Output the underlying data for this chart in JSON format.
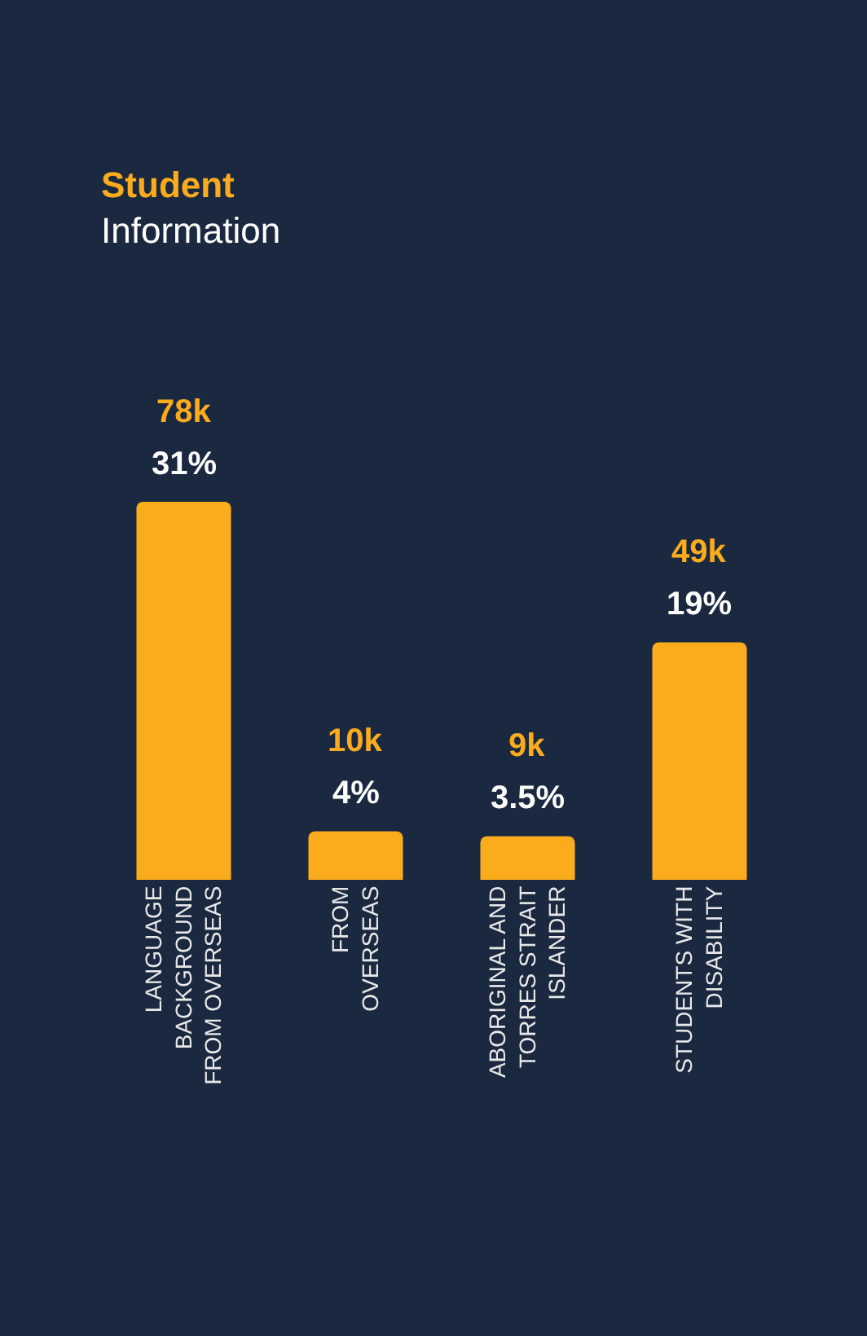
{
  "chart_data": {
    "type": "bar",
    "title": "Student",
    "subtitle": "Information",
    "categories": [
      "LANGUAGE\nBACKGROUND\nFROM OVERSEAS",
      "FROM\nOVERSEAS",
      "ABORIGINAL AND\nTORRES STRAIT\nISLANDER",
      "STUDENTS WITH\nDISABILITY"
    ],
    "values": [
      78,
      10,
      9,
      49
    ],
    "value_labels": [
      "78k",
      "10k",
      "9k",
      "49k"
    ],
    "color": "#fbac1d",
    "annotations": [
      {
        "text": "31%",
        "x": "LANGUAGE\nBACKGROUND\nFROM OVERSEAS",
        "y": 78
      },
      {
        "text": "4%",
        "x": "FROM\nOVERSEAS",
        "y": 10
      },
      {
        "text": "3.5%",
        "x": "ABORIGINAL AND\nTORRES STRAIT\nISLANDER",
        "y": 9
      },
      {
        "text": "19%",
        "x": "STUDENTS WITH\nDISABILITY",
        "y": 49
      }
    ],
    "tick_labels": "x"
  }
}
